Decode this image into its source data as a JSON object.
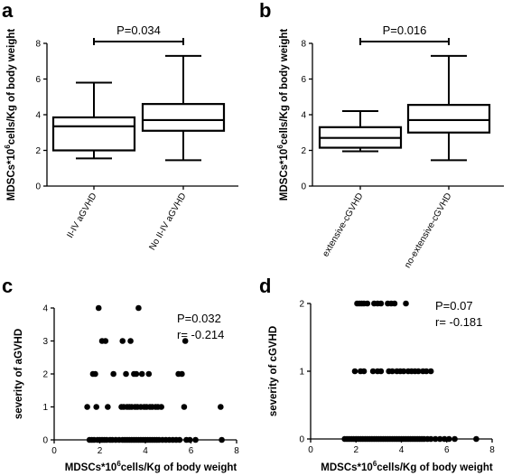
{
  "chart_data": [
    {
      "panel": "a",
      "type": "box",
      "ylabel_main": "MDSCs*10",
      "ylabel_sup": "6",
      "ylabel_rest": "cells/Kg of body weight",
      "ylim": [
        0,
        8
      ],
      "yticks": [
        "0",
        "2",
        "4",
        "6",
        "8"
      ],
      "categories": [
        "II-IV aGVHD",
        "No II-IV aGVHD"
      ],
      "boxes": [
        {
          "min": 1.55,
          "q1": 2.0,
          "median": 3.35,
          "q3": 3.85,
          "max": 5.8
        },
        {
          "min": 1.45,
          "q1": 3.1,
          "median": 3.7,
          "q3": 4.6,
          "max": 7.3
        }
      ],
      "significance": "P=0.034"
    },
    {
      "panel": "b",
      "type": "box",
      "ylabel_main": "MDSCs*10",
      "ylabel_sup": "6",
      "ylabel_rest": "cells/Kg of body weight",
      "ylim": [
        0,
        8
      ],
      "yticks": [
        "0",
        "2",
        "4",
        "6",
        "8"
      ],
      "categories": [
        "extensive-cGVHD",
        "no-extensive-cGVHD"
      ],
      "boxes": [
        {
          "min": 1.95,
          "q1": 2.15,
          "median": 2.7,
          "q3": 3.3,
          "max": 4.2
        },
        {
          "min": 1.45,
          "q1": 3.0,
          "median": 3.7,
          "q3": 4.55,
          "max": 7.3
        }
      ],
      "significance": "P=0.016"
    },
    {
      "panel": "c",
      "type": "scatter",
      "xlabel_main": "MDSCs*10",
      "xlabel_sup": "6",
      "xlabel_rest": "cells/Kg of body weight",
      "ylabel": "severity of aGVHD",
      "xlim": [
        0,
        8
      ],
      "ylim": [
        0,
        4
      ],
      "xticks": [
        "0",
        "2",
        "4",
        "6",
        "8"
      ],
      "yticks": [
        "0",
        "1",
        "2",
        "3",
        "4"
      ],
      "stats": [
        "P=0.032",
        "r= -0.214"
      ],
      "points": [
        [
          1.45,
          1
        ],
        [
          1.7,
          2
        ],
        [
          1.8,
          2
        ],
        [
          1.95,
          4
        ],
        [
          2.1,
          3
        ],
        [
          2.25,
          3
        ],
        [
          1.85,
          1
        ],
        [
          2.6,
          2
        ],
        [
          3.0,
          3
        ],
        [
          3.15,
          2
        ],
        [
          3.35,
          3
        ],
        [
          3.5,
          2
        ],
        [
          3.6,
          2
        ],
        [
          3.7,
          4
        ],
        [
          3.85,
          2
        ],
        [
          4.15,
          2
        ],
        [
          5.45,
          2
        ],
        [
          5.6,
          2
        ],
        [
          5.75,
          3
        ],
        [
          7.3,
          1
        ],
        [
          2.35,
          1
        ],
        [
          2.95,
          1
        ],
        [
          3.05,
          1
        ],
        [
          3.2,
          1
        ],
        [
          3.3,
          1
        ],
        [
          3.4,
          1
        ],
        [
          3.55,
          1
        ],
        [
          3.65,
          1
        ],
        [
          3.8,
          1
        ],
        [
          3.95,
          1
        ],
        [
          4.05,
          1
        ],
        [
          4.2,
          1
        ],
        [
          4.3,
          1
        ],
        [
          4.45,
          1
        ],
        [
          4.55,
          1
        ],
        [
          4.7,
          1
        ],
        [
          5.7,
          1
        ],
        [
          1.55,
          0
        ],
        [
          1.65,
          0
        ],
        [
          1.75,
          0
        ],
        [
          1.9,
          0
        ],
        [
          2.0,
          0
        ],
        [
          2.1,
          0
        ],
        [
          2.2,
          0
        ],
        [
          2.3,
          0
        ],
        [
          2.45,
          0
        ],
        [
          2.55,
          0
        ],
        [
          2.7,
          0
        ],
        [
          2.85,
          0
        ],
        [
          3.0,
          0
        ],
        [
          3.1,
          0
        ],
        [
          3.2,
          0
        ],
        [
          3.3,
          0
        ],
        [
          3.4,
          0
        ],
        [
          3.5,
          0
        ],
        [
          3.6,
          0
        ],
        [
          3.7,
          0
        ],
        [
          3.8,
          0
        ],
        [
          3.9,
          0
        ],
        [
          4.0,
          0
        ],
        [
          4.1,
          0
        ],
        [
          4.2,
          0
        ],
        [
          4.3,
          0
        ],
        [
          4.4,
          0
        ],
        [
          4.5,
          0
        ],
        [
          4.6,
          0
        ],
        [
          4.75,
          0
        ],
        [
          4.9,
          0
        ],
        [
          5.05,
          0
        ],
        [
          5.2,
          0
        ],
        [
          5.35,
          0
        ],
        [
          5.5,
          0
        ],
        [
          5.8,
          0
        ],
        [
          5.95,
          0
        ],
        [
          6.2,
          0
        ],
        [
          7.35,
          0
        ]
      ]
    },
    {
      "panel": "d",
      "type": "scatter",
      "xlabel_main": "MDSCs*10",
      "xlabel_sup": "6",
      "xlabel_rest": "cells/Kg of body weight",
      "ylabel": "severity of cGVHD",
      "xlim": [
        0,
        8
      ],
      "ylim": [
        0,
        2
      ],
      "xticks": [
        "0",
        "2",
        "4",
        "6",
        "8"
      ],
      "yticks": [
        "0",
        "1",
        "2"
      ],
      "stats": [
        "P=0.07",
        "r= -0.181"
      ],
      "points": [
        [
          2.05,
          2
        ],
        [
          2.15,
          2
        ],
        [
          2.25,
          2
        ],
        [
          2.35,
          2
        ],
        [
          2.5,
          2
        ],
        [
          2.8,
          2
        ],
        [
          2.95,
          2
        ],
        [
          3.1,
          2
        ],
        [
          3.4,
          2
        ],
        [
          3.55,
          2
        ],
        [
          3.7,
          2
        ],
        [
          4.2,
          2
        ],
        [
          1.95,
          1
        ],
        [
          2.2,
          1
        ],
        [
          2.35,
          1
        ],
        [
          2.75,
          1
        ],
        [
          2.95,
          1
        ],
        [
          3.1,
          1
        ],
        [
          3.45,
          1
        ],
        [
          3.6,
          1
        ],
        [
          3.8,
          1
        ],
        [
          3.95,
          1
        ],
        [
          4.1,
          1
        ],
        [
          4.3,
          1
        ],
        [
          4.45,
          1
        ],
        [
          4.6,
          1
        ],
        [
          4.75,
          1
        ],
        [
          4.95,
          1
        ],
        [
          5.1,
          1
        ],
        [
          5.3,
          1
        ],
        [
          1.5,
          0
        ],
        [
          1.6,
          0
        ],
        [
          1.7,
          0
        ],
        [
          1.8,
          0
        ],
        [
          1.9,
          0
        ],
        [
          2.0,
          0
        ],
        [
          2.1,
          0
        ],
        [
          2.2,
          0
        ],
        [
          2.3,
          0
        ],
        [
          2.4,
          0
        ],
        [
          2.5,
          0
        ],
        [
          2.6,
          0
        ],
        [
          2.7,
          0
        ],
        [
          2.8,
          0
        ],
        [
          2.9,
          0
        ],
        [
          3.0,
          0
        ],
        [
          3.1,
          0
        ],
        [
          3.2,
          0
        ],
        [
          3.3,
          0
        ],
        [
          3.4,
          0
        ],
        [
          3.5,
          0
        ],
        [
          3.6,
          0
        ],
        [
          3.7,
          0
        ],
        [
          3.8,
          0
        ],
        [
          3.9,
          0
        ],
        [
          4.0,
          0
        ],
        [
          4.1,
          0
        ],
        [
          4.2,
          0
        ],
        [
          4.3,
          0
        ],
        [
          4.4,
          0
        ],
        [
          4.5,
          0
        ],
        [
          4.6,
          0
        ],
        [
          4.7,
          0
        ],
        [
          4.8,
          0
        ],
        [
          4.9,
          0
        ],
        [
          5.0,
          0
        ],
        [
          5.15,
          0
        ],
        [
          5.3,
          0
        ],
        [
          5.5,
          0
        ],
        [
          5.7,
          0
        ],
        [
          5.9,
          0
        ],
        [
          6.1,
          0
        ],
        [
          6.35,
          0
        ],
        [
          7.3,
          0
        ]
      ]
    }
  ]
}
